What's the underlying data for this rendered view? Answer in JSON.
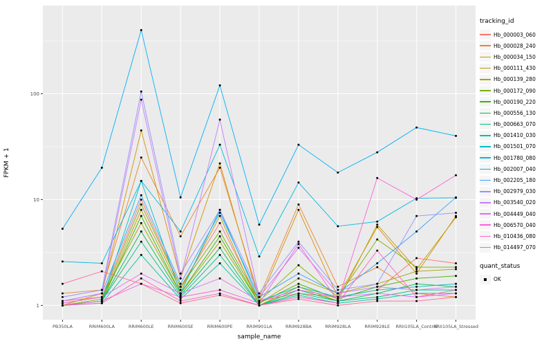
{
  "figure": {
    "background": "#FFFFFF",
    "panel_background": "#EBEBEB",
    "grid_color": "#FFFFFF",
    "tick_color": "#333333",
    "tick_label_color": "#4D4D4D",
    "point_color": "#000000"
  },
  "chart_data": {
    "type": "line",
    "title": "",
    "xlabel": "sample_name",
    "ylabel": "FPKM + 1",
    "y_scale": "log10",
    "ylim": [
      1,
      500
    ],
    "y_major_ticks": [
      1,
      10,
      100
    ],
    "y_minor_ticks_log_exponents": [
      0.5,
      1.5,
      2.5
    ],
    "grid": true,
    "legend_position": "right",
    "legend_title": "tracking_id",
    "shape_legend": {
      "title": "quant_status",
      "items": [
        "OK"
      ]
    },
    "categories": [
      "PB350LA",
      "RRIM600LA",
      "RRIM600LE",
      "RRIM600SE",
      "RRIM600PE",
      "RRIM901LA",
      "RRIM928BA",
      "RRIM928LA",
      "RRIM928LE",
      "RRII105LA_Control",
      "RRII105LA_Stressed"
    ],
    "series": [
      {
        "name": "Hb_000003_060",
        "color": "#F8766D",
        "values": [
          1.1,
          1.2,
          10,
          1.5,
          6,
          1.1,
          1.3,
          1.2,
          1.4,
          2.8,
          2.5
        ]
      },
      {
        "name": "Hb_000028_240",
        "color": "#EA8331",
        "values": [
          1.3,
          1.4,
          25,
          4.5,
          20,
          1.2,
          9,
          1.5,
          2.3,
          1.3,
          1.2
        ]
      },
      {
        "name": "Hb_000034_150",
        "color": "#D89000",
        "values": [
          1.0,
          1.3,
          45,
          1.8,
          22,
          1.1,
          8,
          1.2,
          5.5,
          2.0,
          7.0
        ]
      },
      {
        "name": "Hb_000111_430",
        "color": "#C09B00",
        "values": [
          1.0,
          1.1,
          8,
          1.4,
          7,
          1.0,
          1.5,
          1.1,
          5.8,
          2.2,
          6.8
        ]
      },
      {
        "name": "Hb_000139_280",
        "color": "#A3A500",
        "values": [
          1.05,
          1.2,
          6,
          1.3,
          4,
          1.05,
          1.8,
          1.3,
          1.6,
          2.1,
          2.2
        ]
      },
      {
        "name": "Hb_000172_090",
        "color": "#7CAE00",
        "values": [
          1.0,
          1.15,
          9,
          1.5,
          5,
          1.1,
          2.4,
          1.2,
          4.2,
          2.3,
          2.3
        ]
      },
      {
        "name": "Hb_000190_220",
        "color": "#39B600",
        "values": [
          1.0,
          1.1,
          7,
          1.3,
          4.5,
          1.05,
          1.6,
          1.15,
          1.5,
          1.8,
          1.9
        ]
      },
      {
        "name": "Hb_000556_130",
        "color": "#00BB4E",
        "values": [
          1.0,
          1.1,
          5,
          1.25,
          3.5,
          1.0,
          1.4,
          1.1,
          1.3,
          1.6,
          1.5
        ]
      },
      {
        "name": "Hb_000663_070",
        "color": "#00BF7D",
        "values": [
          1.0,
          1.1,
          4,
          1.2,
          3,
          1.0,
          1.3,
          1.1,
          1.2,
          1.4,
          1.4
        ]
      },
      {
        "name": "Hb_001410_030",
        "color": "#00C1A3",
        "values": [
          1.0,
          1.05,
          3,
          1.15,
          2.5,
          1.0,
          1.25,
          1.05,
          1.15,
          1.3,
          1.3
        ]
      },
      {
        "name": "Hb_001501_070",
        "color": "#00BFC4",
        "values": [
          1.0,
          1.1,
          15,
          1.3,
          8,
          1.1,
          1.5,
          1.2,
          1.4,
          1.5,
          1.6
        ]
      },
      {
        "name": "Hb_001780_080",
        "color": "#00BAE0",
        "values": [
          2.6,
          2.5,
          15,
          5.0,
          33,
          2.9,
          14.5,
          5.6,
          6.2,
          10.3,
          10.4
        ]
      },
      {
        "name": "Hb_002007_040",
        "color": "#00B0F6",
        "values": [
          5.3,
          20,
          400,
          10.5,
          120,
          5.8,
          33,
          18,
          28,
          48,
          40
        ]
      },
      {
        "name": "Hb_002205_180",
        "color": "#35A2FF",
        "values": [
          1.1,
          1.3,
          11,
          1.6,
          7.5,
          1.2,
          2.0,
          1.3,
          2.5,
          5.0,
          10.5
        ]
      },
      {
        "name": "Hb_002979_030",
        "color": "#9590FF",
        "values": [
          1.2,
          1.4,
          105,
          2.0,
          8,
          1.3,
          4.0,
          1.4,
          1.6,
          7.0,
          7.5
        ]
      },
      {
        "name": "Hb_003540_020",
        "color": "#C77CFF",
        "values": [
          1.1,
          1.3,
          88,
          1.8,
          57,
          1.2,
          3.5,
          1.3,
          1.5,
          1.4,
          1.5
        ]
      },
      {
        "name": "Hb_004449_040",
        "color": "#E76BF3",
        "values": [
          1.05,
          1.2,
          2.0,
          1.3,
          1.8,
          1.1,
          1.4,
          1.2,
          1.3,
          1.2,
          1.3
        ]
      },
      {
        "name": "Hb_006570_040",
        "color": "#FA62DB",
        "values": [
          1.0,
          1.1,
          1.6,
          1.2,
          1.4,
          1.05,
          3.8,
          1.1,
          16,
          10,
          17
        ]
      },
      {
        "name": "Hb_010436_080",
        "color": "#FF62BC",
        "values": [
          1.0,
          1.05,
          1.8,
          1.1,
          1.3,
          1.0,
          1.2,
          1.05,
          3.3,
          1.2,
          1.4
        ]
      },
      {
        "name": "Hb_014497_070",
        "color": "#FF6A98",
        "values": [
          1.6,
          2.1,
          1.6,
          1.05,
          1.25,
          1.0,
          1.15,
          1.0,
          1.1,
          1.1,
          1.2
        ]
      }
    ]
  }
}
